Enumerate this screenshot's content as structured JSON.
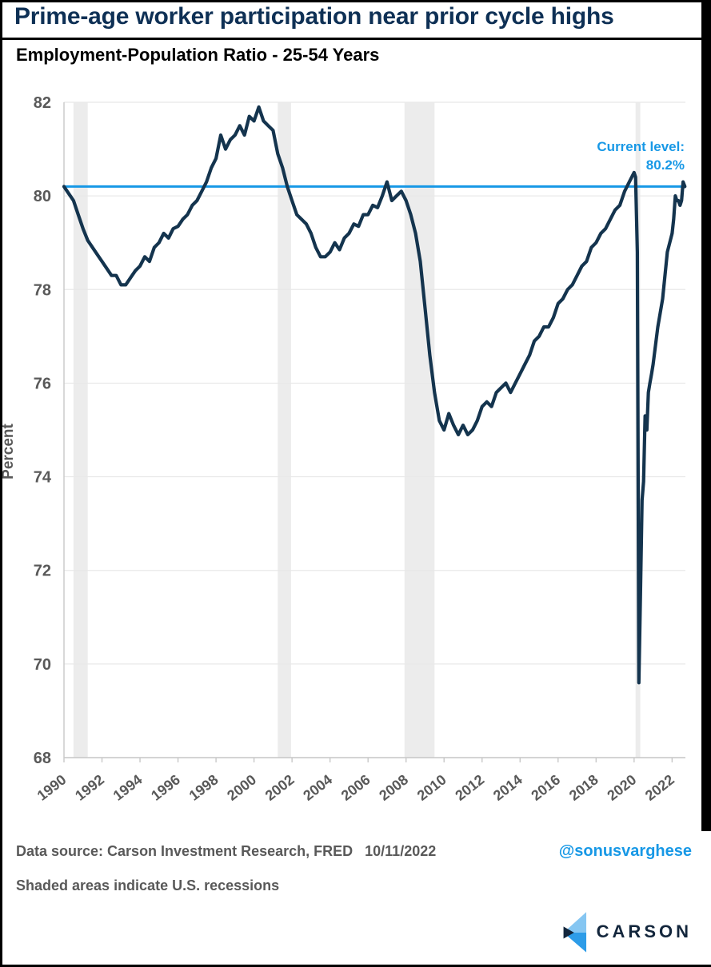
{
  "annotation": {
    "line1": "Current level:",
    "line2": "80.2%"
  },
  "footer": {
    "source": "Data source: Carson Investment Research, FRED",
    "date": "10/11/2022",
    "handle": "@sonusvarghese",
    "note": "Shaded areas indicate U.S. recessions",
    "brand": "CARSON"
  },
  "colors": {
    "accent": "#1798e6",
    "line": "#14344e",
    "band": "#ececec",
    "grid": "#e8e8e8",
    "axis": "#c8c8c8",
    "tick_text": "#595959",
    "title_navy": "#0e3055",
    "logo_light": "#85c6f2",
    "logo_mid": "#2d9ce8",
    "logo_dark": "#13263c"
  },
  "chart_data": {
    "type": "line",
    "title": "Prime-age worker participation near prior cycle highs",
    "subtitle": "Employment-Population Ratio - 25-54 Years",
    "ylabel": "Percent",
    "ylim": [
      68,
      82
    ],
    "yticks": [
      68,
      70,
      72,
      74,
      76,
      78,
      80,
      82
    ],
    "xlim": [
      1990,
      2022.7
    ],
    "xticks": [
      1990,
      1992,
      1994,
      1996,
      1998,
      2000,
      2002,
      2004,
      2006,
      2008,
      2010,
      2012,
      2014,
      2016,
      2018,
      2020,
      2022
    ],
    "grid": "horizontal",
    "legend": "none",
    "current_level": 80.2,
    "current_level_label": "Current level: 80.2%",
    "recessions": [
      [
        1990.5,
        1991.25
      ],
      [
        2001.25,
        2001.95
      ],
      [
        2007.92,
        2009.5
      ],
      [
        2020.08,
        2020.33
      ]
    ],
    "series": [
      {
        "name": "Employment-Population Ratio 25-54 Years (%)",
        "points": [
          [
            1990.0,
            80.2
          ],
          [
            1990.25,
            80.05
          ],
          [
            1990.5,
            79.9
          ],
          [
            1990.75,
            79.6
          ],
          [
            1991.0,
            79.3
          ],
          [
            1991.25,
            79.05
          ],
          [
            1991.5,
            78.9
          ],
          [
            1991.75,
            78.75
          ],
          [
            1992.0,
            78.6
          ],
          [
            1992.25,
            78.45
          ],
          [
            1992.5,
            78.3
          ],
          [
            1992.75,
            78.3
          ],
          [
            1993.0,
            78.1
          ],
          [
            1993.25,
            78.1
          ],
          [
            1993.5,
            78.25
          ],
          [
            1993.75,
            78.4
          ],
          [
            1994.0,
            78.5
          ],
          [
            1994.25,
            78.7
          ],
          [
            1994.5,
            78.6
          ],
          [
            1994.75,
            78.9
          ],
          [
            1995.0,
            79.0
          ],
          [
            1995.25,
            79.2
          ],
          [
            1995.5,
            79.1
          ],
          [
            1995.75,
            79.3
          ],
          [
            1996.0,
            79.35
          ],
          [
            1996.25,
            79.5
          ],
          [
            1996.5,
            79.6
          ],
          [
            1996.75,
            79.8
          ],
          [
            1997.0,
            79.9
          ],
          [
            1997.25,
            80.1
          ],
          [
            1997.5,
            80.3
          ],
          [
            1997.75,
            80.6
          ],
          [
            1998.0,
            80.8
          ],
          [
            1998.25,
            81.3
          ],
          [
            1998.5,
            81.0
          ],
          [
            1998.75,
            81.2
          ],
          [
            1999.0,
            81.3
          ],
          [
            1999.25,
            81.5
          ],
          [
            1999.5,
            81.3
          ],
          [
            1999.75,
            81.7
          ],
          [
            2000.0,
            81.6
          ],
          [
            2000.25,
            81.9
          ],
          [
            2000.5,
            81.6
          ],
          [
            2000.75,
            81.5
          ],
          [
            2001.0,
            81.4
          ],
          [
            2001.25,
            80.9
          ],
          [
            2001.5,
            80.6
          ],
          [
            2001.75,
            80.2
          ],
          [
            2002.0,
            79.9
          ],
          [
            2002.25,
            79.6
          ],
          [
            2002.5,
            79.5
          ],
          [
            2002.75,
            79.4
          ],
          [
            2003.0,
            79.2
          ],
          [
            2003.25,
            78.9
          ],
          [
            2003.5,
            78.7
          ],
          [
            2003.75,
            78.7
          ],
          [
            2004.0,
            78.8
          ],
          [
            2004.25,
            79.0
          ],
          [
            2004.5,
            78.85
          ],
          [
            2004.75,
            79.1
          ],
          [
            2005.0,
            79.2
          ],
          [
            2005.25,
            79.4
          ],
          [
            2005.5,
            79.35
          ],
          [
            2005.75,
            79.6
          ],
          [
            2006.0,
            79.6
          ],
          [
            2006.25,
            79.8
          ],
          [
            2006.5,
            79.75
          ],
          [
            2006.75,
            80.0
          ],
          [
            2007.0,
            80.3
          ],
          [
            2007.25,
            79.9
          ],
          [
            2007.5,
            80.0
          ],
          [
            2007.75,
            80.1
          ],
          [
            2008.0,
            79.9
          ],
          [
            2008.25,
            79.6
          ],
          [
            2008.5,
            79.2
          ],
          [
            2008.75,
            78.6
          ],
          [
            2009.0,
            77.6
          ],
          [
            2009.25,
            76.6
          ],
          [
            2009.5,
            75.8
          ],
          [
            2009.75,
            75.2
          ],
          [
            2010.0,
            75.0
          ],
          [
            2010.25,
            75.35
          ],
          [
            2010.5,
            75.1
          ],
          [
            2010.75,
            74.9
          ],
          [
            2011.0,
            75.1
          ],
          [
            2011.25,
            74.9
          ],
          [
            2011.5,
            75.0
          ],
          [
            2011.75,
            75.2
          ],
          [
            2012.0,
            75.5
          ],
          [
            2012.25,
            75.6
          ],
          [
            2012.5,
            75.5
          ],
          [
            2012.75,
            75.8
          ],
          [
            2013.0,
            75.9
          ],
          [
            2013.25,
            76.0
          ],
          [
            2013.5,
            75.8
          ],
          [
            2013.75,
            76.0
          ],
          [
            2014.0,
            76.2
          ],
          [
            2014.25,
            76.4
          ],
          [
            2014.5,
            76.6
          ],
          [
            2014.75,
            76.9
          ],
          [
            2015.0,
            77.0
          ],
          [
            2015.25,
            77.2
          ],
          [
            2015.5,
            77.2
          ],
          [
            2015.75,
            77.4
          ],
          [
            2016.0,
            77.7
          ],
          [
            2016.25,
            77.8
          ],
          [
            2016.5,
            78.0
          ],
          [
            2016.75,
            78.1
          ],
          [
            2017.0,
            78.3
          ],
          [
            2017.25,
            78.5
          ],
          [
            2017.5,
            78.6
          ],
          [
            2017.75,
            78.9
          ],
          [
            2018.0,
            79.0
          ],
          [
            2018.25,
            79.2
          ],
          [
            2018.5,
            79.3
          ],
          [
            2018.75,
            79.5
          ],
          [
            2019.0,
            79.7
          ],
          [
            2019.25,
            79.8
          ],
          [
            2019.5,
            80.1
          ],
          [
            2019.75,
            80.3
          ],
          [
            2020.0,
            80.5
          ],
          [
            2020.08,
            80.4
          ],
          [
            2020.17,
            78.8
          ],
          [
            2020.25,
            69.6
          ],
          [
            2020.33,
            71.4
          ],
          [
            2020.42,
            73.5
          ],
          [
            2020.5,
            73.9
          ],
          [
            2020.58,
            75.3
          ],
          [
            2020.67,
            75.0
          ],
          [
            2020.75,
            75.8
          ],
          [
            2020.83,
            76.0
          ],
          [
            2020.92,
            76.2
          ],
          [
            2021.0,
            76.4
          ],
          [
            2021.25,
            77.2
          ],
          [
            2021.5,
            77.8
          ],
          [
            2021.75,
            78.8
          ],
          [
            2022.0,
            79.2
          ],
          [
            2022.08,
            79.5
          ],
          [
            2022.17,
            80.0
          ],
          [
            2022.25,
            79.9
          ],
          [
            2022.33,
            79.9
          ],
          [
            2022.42,
            79.8
          ],
          [
            2022.5,
            79.9
          ],
          [
            2022.58,
            80.3
          ],
          [
            2022.67,
            80.2
          ]
        ]
      }
    ]
  }
}
